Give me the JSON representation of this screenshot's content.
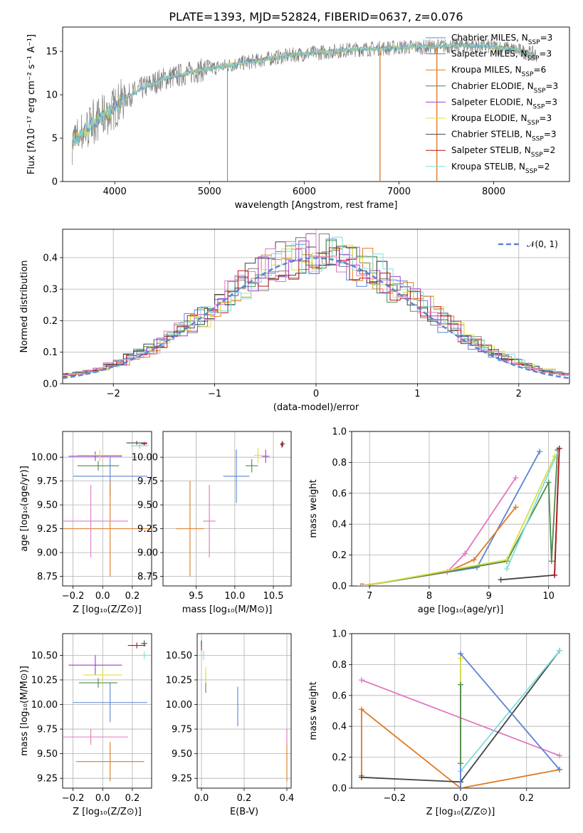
{
  "title": "PLATE=1393, MJD=52824, FIBERID=0637, z=0.076",
  "colors": {
    "chabrier_miles": "#5b84d4",
    "salpeter_miles": "#7f7f7f",
    "kroupa_miles": "#e07a22",
    "chabrier_elodie": "#4d8a4d",
    "salpeter_elodie": "#9b3fc9",
    "kroupa_elodie": "#dbe040",
    "chabrier_stelib": "#444444",
    "salpeter_stelib": "#b3161a",
    "kroupa_stelib": "#7fdede",
    "pink": "#e377c2",
    "gaussian": "#5b84d4",
    "data": "#808080"
  },
  "chart_data": [
    {
      "type": "line",
      "name": "spectrum",
      "xlabel": "wavelength [Angstrom, rest frame]",
      "ylabel": "Flux [fλ10⁻¹⁷ erg cm⁻² s⁻¹ A⁻¹]",
      "xlim": [
        3450,
        8800
      ],
      "ylim": [
        0,
        17.8
      ],
      "xticks": [
        4000,
        5000,
        6000,
        7000,
        8000
      ],
      "yticks": [
        0,
        5,
        10,
        15
      ],
      "grid": false,
      "legend_position": "right",
      "legend": [
        "Chabrier MILES, N_SSP=3",
        "Salpeter MILES, N_SSP=3",
        "Kroupa MILES, N_SSP=6",
        "Chabrier ELODIE, N_SSP=3",
        "Salpeter ELODIE, N_SSP=3",
        "Kroupa ELODIE, N_SSP=3",
        "Chabrier STELIB, N_SSP=3",
        "Salpeter STELIB, N_SSP=2",
        "Kroupa STELIB, N_SSP=2"
      ],
      "continuum": {
        "x": [
          3550,
          3650,
          3800,
          3950,
          4100,
          4300,
          4500,
          4700,
          4900,
          5100,
          5300,
          5500,
          5700,
          5900,
          6100,
          6300,
          6500,
          6700,
          6900,
          7100,
          7300,
          7500,
          7700,
          7900,
          8100,
          8300,
          8450
        ],
        "y": [
          4.5,
          5.5,
          7.0,
          8.0,
          9.6,
          10.8,
          11.8,
          12.3,
          12.8,
          13.2,
          13.6,
          13.9,
          14.3,
          14.6,
          14.8,
          15.0,
          15.2,
          15.3,
          15.4,
          15.5,
          15.5,
          15.6,
          15.7,
          15.6,
          15.4,
          15.0,
          14.6
        ]
      },
      "spikes": [
        [
          5190,
          0
        ],
        [
          6800,
          0
        ],
        [
          7400,
          0
        ]
      ]
    },
    {
      "type": "bar",
      "name": "residual-histogram",
      "xlabel": "(data-model)/error",
      "ylabel": "Normed distribution",
      "xlim": [
        -2.5,
        2.5
      ],
      "ylim": [
        0,
        0.49
      ],
      "xticks": [
        -2,
        -1,
        0,
        1,
        2
      ],
      "yticks": [
        0.0,
        0.1,
        0.2,
        0.3,
        0.4
      ],
      "grid": true,
      "legend_position": "top-right",
      "gaussian_label": "𝒩(0, 1)",
      "bin_width": 0.1
    },
    {
      "type": "scatter",
      "name": "age-vs-Z",
      "xlabel": "Z [log₁₀(Z/Z⊙)]",
      "ylabel": "age  [log₁₀(age/yr)]",
      "xlim": [
        -0.27,
        0.33
      ],
      "ylim": [
        8.65,
        10.27
      ],
      "xticks": [
        -0.2,
        0.0,
        0.2
      ],
      "yticks": [
        8.75,
        9.0,
        9.25,
        9.5,
        9.75,
        10.0
      ],
      "points": [
        {
          "c": "chabrier_miles",
          "x": 0.05,
          "y": 9.8,
          "xe": 0.25,
          "ye": 0.2
        },
        {
          "c": "salpeter_miles",
          "x": 0.25,
          "y": 10.12,
          "xe": 0.05,
          "ye": 0.03
        },
        {
          "c": "kroupa_miles",
          "x": 0.05,
          "y": 9.25,
          "xe": 0.32,
          "ye": 0.5
        },
        {
          "c": "chabrier_elodie",
          "x": -0.03,
          "y": 9.91,
          "xe": 0.14,
          "ye": 0.05
        },
        {
          "c": "salpeter_elodie",
          "x": -0.05,
          "y": 10.01,
          "xe": 0.18,
          "ye": 0.05
        },
        {
          "c": "kroupa_elodie",
          "x": -0.02,
          "y": 10.02,
          "xe": 0.15,
          "ye": 0.06
        },
        {
          "c": "chabrier_stelib",
          "x": 0.23,
          "y": 10.15,
          "xe": 0.07,
          "ye": 0.02
        },
        {
          "c": "salpeter_stelib",
          "x": 0.28,
          "y": 10.14,
          "xe": 0.02,
          "ye": 0.02
        },
        {
          "c": "kroupa_stelib",
          "x": 0.25,
          "y": 10.12,
          "xe": 0.06,
          "ye": 0.03
        },
        {
          "c": "pink",
          "x": -0.08,
          "y": 9.33,
          "xe": 0.25,
          "ye": 0.38
        }
      ]
    },
    {
      "type": "scatter",
      "name": "age-vs-mass",
      "xlabel": "mass [log₁₀(M/M⊙)]",
      "ylabel": "",
      "xlim": [
        9.07,
        10.73
      ],
      "ylim": [
        8.65,
        10.27
      ],
      "xticks": [
        9.5,
        10.0,
        10.5
      ],
      "yticks": [
        8.75,
        9.0,
        9.25,
        9.5,
        9.75,
        10.0
      ],
      "points": [
        {
          "c": "chabrier_miles",
          "x": 10.02,
          "y": 9.8,
          "xe": 0.17,
          "ye": 0.28
        },
        {
          "c": "kroupa_miles",
          "x": 9.42,
          "y": 9.25,
          "xe": 0.18,
          "ye": 0.5
        },
        {
          "c": "pink",
          "x": 9.67,
          "y": 9.33,
          "xe": 0.08,
          "ye": 0.38
        },
        {
          "c": "chabrier_elodie",
          "x": 10.22,
          "y": 9.91,
          "xe": 0.08,
          "ye": 0.07
        },
        {
          "c": "salpeter_elodie",
          "x": 10.4,
          "y": 10.01,
          "xe": 0.05,
          "ye": 0.07
        },
        {
          "c": "kroupa_elodie",
          "x": 10.3,
          "y": 10.02,
          "xe": 0.05,
          "ye": 0.08
        },
        {
          "c": "chabrier_stelib",
          "x": 10.62,
          "y": 10.14,
          "xe": 0.03,
          "ye": 0.03
        },
        {
          "c": "salpeter_stelib",
          "x": 10.61,
          "y": 10.13,
          "xe": 0.02,
          "ye": 0.03
        }
      ]
    },
    {
      "type": "line",
      "name": "weight-vs-age",
      "xlabel": "age  [log₁₀(age/yr)]",
      "ylabel": "mass weight",
      "xlim": [
        6.7,
        10.35
      ],
      "ylim": [
        0,
        1.0
      ],
      "xticks": [
        7,
        8,
        9,
        10
      ],
      "yticks": [
        0.0,
        0.2,
        0.4,
        0.6,
        0.8,
        1.0
      ],
      "series": [
        {
          "c": "chabrier_miles",
          "x": [
            6.88,
            8.8,
            9.85
          ],
          "y": [
            0.0,
            0.12,
            0.87
          ]
        },
        {
          "c": "kroupa_miles",
          "x": [
            6.85,
            8.3,
            8.75,
            9.45
          ],
          "y": [
            0.0,
            0.09,
            0.17,
            0.51
          ]
        },
        {
          "c": "pink",
          "x": [
            8.3,
            8.6,
            9.45
          ],
          "y": [
            0.09,
            0.21,
            0.7
          ]
        },
        {
          "c": "chabrier_elodie",
          "x": [
            6.9,
            9.3,
            10.0,
            10.05,
            10.15
          ],
          "y": [
            0.0,
            0.16,
            0.67,
            0.16,
            0.88
          ]
        },
        {
          "c": "kroupa_elodie",
          "x": [
            6.9,
            9.3,
            10.1
          ],
          "y": [
            0.0,
            0.17,
            0.84
          ]
        },
        {
          "c": "kroupa_stelib",
          "x": [
            9.3,
            10.18
          ],
          "y": [
            0.11,
            0.89
          ]
        },
        {
          "c": "chabrier_stelib",
          "x": [
            9.2,
            10.1,
            10.18
          ],
          "y": [
            0.04,
            0.07,
            0.89
          ]
        },
        {
          "c": "salpeter_stelib",
          "x": [
            10.1,
            10.18
          ],
          "y": [
            0.07,
            0.89
          ]
        }
      ]
    },
    {
      "type": "scatter",
      "name": "mass-vs-Z",
      "xlabel": "Z [log₁₀(Z/Z⊙)]",
      "ylabel": "mass [log₁₀(M/M⊙)]",
      "xlim": [
        -0.27,
        0.33
      ],
      "ylim": [
        9.15,
        10.72
      ],
      "xticks": [
        -0.2,
        0.0,
        0.2
      ],
      "yticks": [
        9.25,
        9.5,
        9.75,
        10.0,
        10.25,
        10.5
      ],
      "points": [
        {
          "c": "chabrier_miles",
          "x": 0.05,
          "y": 10.02,
          "xe": 0.25,
          "ye": 0.2
        },
        {
          "c": "kroupa_miles",
          "x": 0.05,
          "y": 9.42,
          "xe": 0.23,
          "ye": 0.2
        },
        {
          "c": "pink",
          "x": -0.08,
          "y": 9.67,
          "xe": 0.25,
          "ye": 0.08
        },
        {
          "c": "chabrier_elodie",
          "x": -0.03,
          "y": 10.22,
          "xe": 0.13,
          "ye": 0.05
        },
        {
          "c": "salpeter_elodie",
          "x": -0.05,
          "y": 10.4,
          "xe": 0.18,
          "ye": 0.1
        },
        {
          "c": "kroupa_elodie",
          "x": 0.0,
          "y": 10.3,
          "xe": 0.13,
          "ye": 0.08
        },
        {
          "c": "salpeter_stelib",
          "x": 0.23,
          "y": 10.6,
          "xe": 0.06,
          "ye": 0.03
        },
        {
          "c": "kroupa_stelib",
          "x": 0.28,
          "y": 10.5,
          "xe": 0.04,
          "ye": 0.04
        },
        {
          "c": "chabrier_stelib",
          "x": 0.28,
          "y": 10.62,
          "xe": 0.02,
          "ye": 0.03
        }
      ]
    },
    {
      "type": "scatter",
      "name": "mass-vs-ebv",
      "xlabel": "E(B-V)",
      "ylabel": "",
      "xlim": [
        -0.02,
        0.42
      ],
      "ylim": [
        9.15,
        10.72
      ],
      "xticks": [
        0.0,
        0.2,
        0.4
      ],
      "yticks": [
        9.25,
        9.5,
        9.75,
        10.0,
        10.25,
        10.5
      ],
      "points": [
        {
          "c": "chabrier_miles",
          "x": 0.17,
          "y": 9.98,
          "xe": 0.0,
          "ye": 0.2
        },
        {
          "c": "kroupa_miles",
          "x": 0.4,
          "y": 9.42,
          "xe": 0.0,
          "ye": 0.2
        },
        {
          "c": "pink",
          "x": 0.4,
          "y": 9.67,
          "xe": 0.0,
          "ye": 0.08
        },
        {
          "c": "chabrier_elodie",
          "x": 0.02,
          "y": 10.22,
          "xe": 0.0,
          "ye": 0.1
        },
        {
          "c": "kroupa_elodie",
          "x": 0.02,
          "y": 10.3,
          "xe": 0.0,
          "ye": 0.08
        },
        {
          "c": "kroupa_stelib",
          "x": 0.01,
          "y": 10.5,
          "xe": 0.0,
          "ye": 0.05
        },
        {
          "c": "salpeter_stelib",
          "x": 0.0,
          "y": 10.6,
          "xe": 0.0,
          "ye": 0.05
        },
        {
          "c": "chabrier_stelib",
          "x": 0.0,
          "y": 10.62,
          "xe": 0.0,
          "ye": 0.03
        }
      ]
    },
    {
      "type": "line",
      "name": "weight-vs-Z",
      "xlabel": "Z [log₁₀(Z/Z⊙)]",
      "ylabel": "mass weight",
      "xlim": [
        -0.33,
        0.33
      ],
      "ylim": [
        0,
        1.0
      ],
      "xticks": [
        -0.2,
        0.0,
        0.2
      ],
      "yticks": [
        0.0,
        0.2,
        0.4,
        0.6,
        0.8,
        1.0
      ],
      "series": [
        {
          "c": "pink",
          "x": [
            -0.3,
            0.3
          ],
          "y": [
            0.7,
            0.21
          ]
        },
        {
          "c": "kroupa_miles",
          "x": [
            -0.3,
            -0.3,
            0.0,
            0.3
          ],
          "y": [
            0.08,
            0.51,
            0.0,
            0.12
          ]
        },
        {
          "c": "chabrier_stelib",
          "x": [
            -0.3,
            0.0,
            0.3
          ],
          "y": [
            0.07,
            0.04,
            0.89
          ]
        },
        {
          "c": "kroupa_stelib",
          "x": [
            0.0,
            0.3
          ],
          "y": [
            0.11,
            0.89
          ]
        },
        {
          "c": "chabrier_miles",
          "x": [
            0.0,
            0.0,
            0.3
          ],
          "y": [
            0.0,
            0.87,
            0.12
          ]
        },
        {
          "c": "kroupa_elodie",
          "x": [
            0.0,
            0.0
          ],
          "y": [
            0.84,
            0.16
          ]
        },
        {
          "c": "chabrier_elodie",
          "x": [
            0.0,
            0.0
          ],
          "y": [
            0.67,
            0.16
          ]
        }
      ]
    }
  ]
}
